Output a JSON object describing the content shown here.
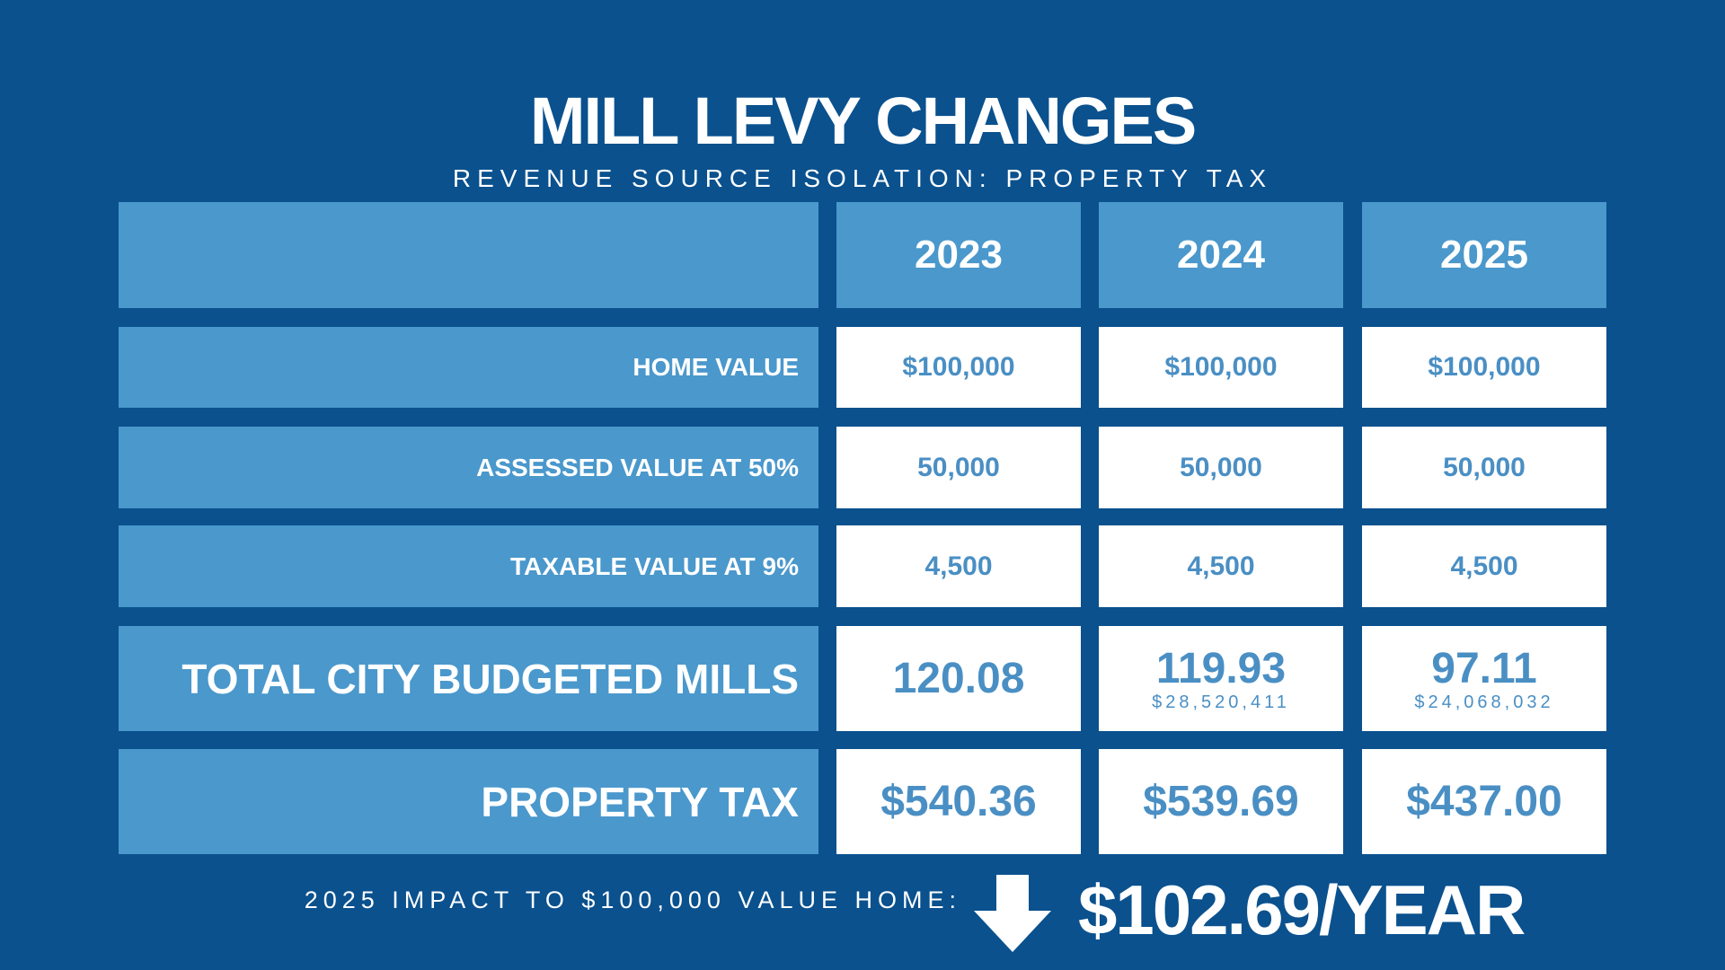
{
  "header": {
    "title": "MILL LEVY CHANGES",
    "subtitle": "REVENUE SOURCE ISOLATION: PROPERTY TAX"
  },
  "table": {
    "columns": [
      "2023",
      "2024",
      "2025"
    ],
    "rows": [
      {
        "label": "HOME VALUE",
        "cells": [
          {
            "value": "$100,000"
          },
          {
            "value": "$100,000"
          },
          {
            "value": "$100,000"
          }
        ]
      },
      {
        "label": "ASSESSED VALUE AT 50%",
        "cells": [
          {
            "value": "50,000"
          },
          {
            "value": "50,000"
          },
          {
            "value": "50,000"
          }
        ]
      },
      {
        "label": "TAXABLE VALUE AT 9%",
        "cells": [
          {
            "value": "4,500"
          },
          {
            "value": "4,500"
          },
          {
            "value": "4,500"
          }
        ]
      },
      {
        "label": "TOTAL CITY BUDGETED MILLS",
        "cells": [
          {
            "value": "120.08"
          },
          {
            "value": "119.93",
            "note": "$28,520,411"
          },
          {
            "value": "97.11",
            "note": "$24,068,032"
          }
        ]
      },
      {
        "label": "PROPERTY TAX",
        "cells": [
          {
            "value": "$540.36"
          },
          {
            "value": "$539.69"
          },
          {
            "value": "$437.00"
          }
        ]
      }
    ]
  },
  "footer": {
    "label": "2025 IMPACT TO $100,000 VALUE HOME:",
    "amount": "$102.69/YEAR"
  }
}
